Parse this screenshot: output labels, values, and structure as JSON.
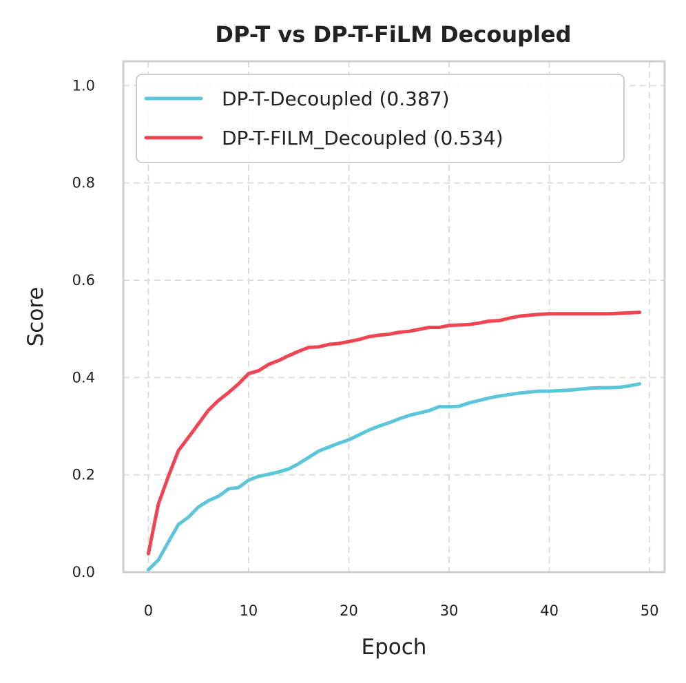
{
  "chart_data": {
    "type": "line",
    "title": "DP-T vs DP-T-FiLM Decoupled",
    "xlabel": "Epoch",
    "ylabel": "Score",
    "xlim": [
      -2.5,
      51.5
    ],
    "ylim": [
      0.0,
      1.05
    ],
    "xticks": [
      0,
      10,
      20,
      30,
      40,
      50
    ],
    "yticks": [
      0.0,
      0.2,
      0.4,
      0.6,
      0.8,
      1.0
    ],
    "grid": true,
    "legend_position": "top-left",
    "x": [
      0,
      1,
      2,
      3,
      4,
      5,
      6,
      7,
      8,
      9,
      10,
      11,
      12,
      13,
      14,
      15,
      16,
      17,
      18,
      19,
      20,
      21,
      22,
      23,
      24,
      25,
      26,
      27,
      28,
      29,
      30,
      31,
      32,
      33,
      34,
      35,
      36,
      37,
      38,
      39,
      40,
      41,
      42,
      43,
      44,
      45,
      46,
      47,
      48,
      49
    ],
    "series": [
      {
        "name": "DP-T-Decoupled (0.387)",
        "color": "#5bc5d9",
        "values": [
          0.005,
          0.025,
          0.062,
          0.098,
          0.113,
          0.134,
          0.147,
          0.156,
          0.171,
          0.174,
          0.189,
          0.197,
          0.201,
          0.206,
          0.212,
          0.223,
          0.236,
          0.249,
          0.257,
          0.265,
          0.272,
          0.282,
          0.292,
          0.3,
          0.307,
          0.315,
          0.322,
          0.327,
          0.332,
          0.34,
          0.34,
          0.341,
          0.348,
          0.353,
          0.358,
          0.362,
          0.365,
          0.368,
          0.37,
          0.372,
          0.372,
          0.373,
          0.374,
          0.376,
          0.378,
          0.379,
          0.379,
          0.38,
          0.383,
          0.387
        ]
      },
      {
        "name": "DP-T-FILM_Decoupled (0.534)",
        "color": "#ef4452",
        "values": [
          0.038,
          0.14,
          0.197,
          0.25,
          0.277,
          0.305,
          0.333,
          0.353,
          0.369,
          0.387,
          0.408,
          0.414,
          0.427,
          0.435,
          0.445,
          0.454,
          0.462,
          0.463,
          0.468,
          0.47,
          0.474,
          0.478,
          0.484,
          0.487,
          0.489,
          0.493,
          0.495,
          0.499,
          0.503,
          0.503,
          0.507,
          0.508,
          0.509,
          0.512,
          0.516,
          0.517,
          0.522,
          0.526,
          0.528,
          0.53,
          0.531,
          0.531,
          0.531,
          0.531,
          0.531,
          0.531,
          0.531,
          0.532,
          0.533,
          0.534
        ]
      }
    ]
  }
}
